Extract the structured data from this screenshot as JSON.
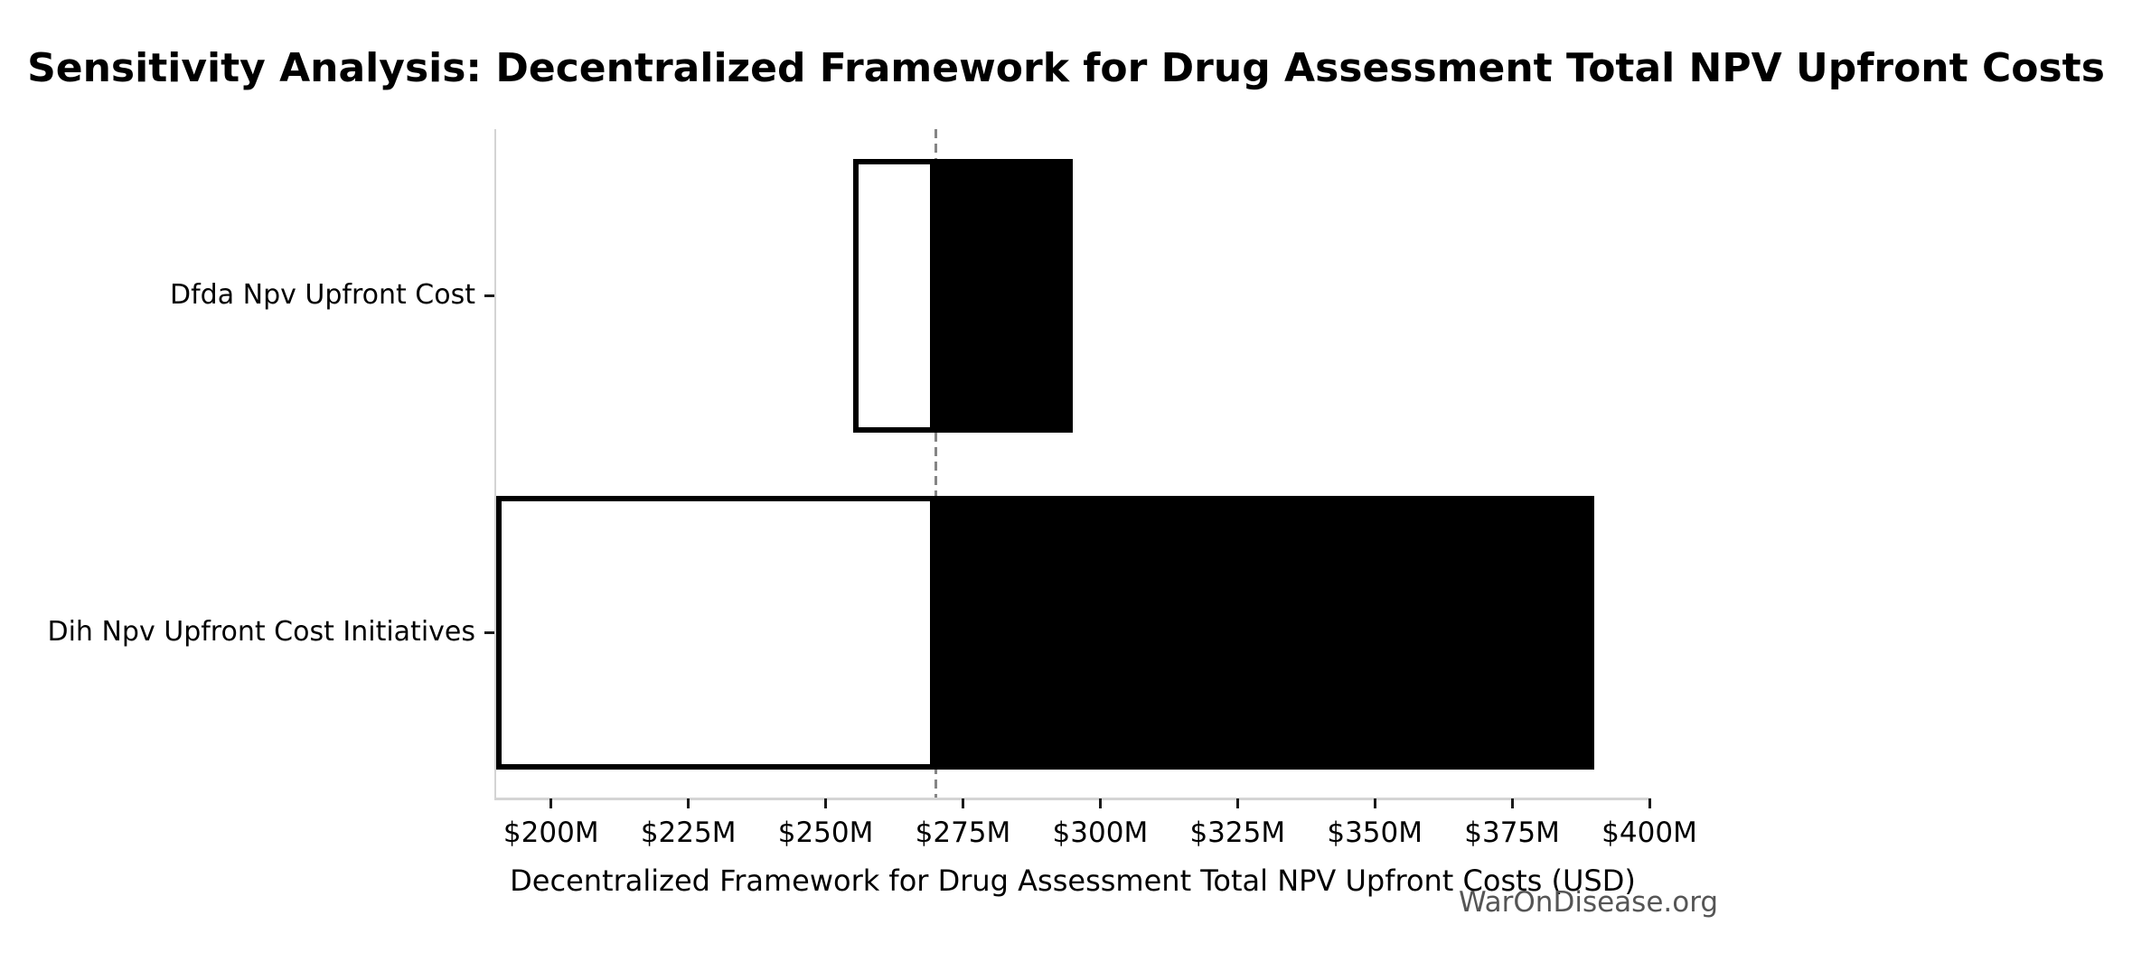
{
  "chart_data": {
    "type": "bar",
    "subtype": "tornado-sensitivity",
    "orientation": "horizontal",
    "title": "Sensitivity Analysis: Decentralized Framework for Drug Assessment Total NPV Upfront Costs",
    "xlabel": "Decentralized Framework for Drug Assessment Total NPV Upfront Costs (USD)",
    "watermark": "WarOnDisease.org",
    "unit": "USD millions",
    "xlim": [
      190,
      400
    ],
    "baseline_value": 270,
    "grid": false,
    "legend": "none",
    "x_ticks": [
      {
        "value": 200,
        "label": "$200M"
      },
      {
        "value": 225,
        "label": "$225M"
      },
      {
        "value": 250,
        "label": "$250M"
      },
      {
        "value": 275,
        "label": "$275M"
      },
      {
        "value": 300,
        "label": "$300M"
      },
      {
        "value": 325,
        "label": "$325M"
      },
      {
        "value": 350,
        "label": "$350M"
      },
      {
        "value": 375,
        "label": "$375M"
      },
      {
        "value": 400,
        "label": "$400M"
      }
    ],
    "categories": [
      "Dfda Npv Upfront Cost",
      "Dih Npv Upfront Cost Initiatives"
    ],
    "series": [
      {
        "name": "Dfda Npv Upfront Cost",
        "low": 255,
        "high": 295
      },
      {
        "name": "Dih Npv Upfront Cost Initiatives",
        "low": 190,
        "high": 390
      }
    ],
    "colors": {
      "low_fill": "#ffffff",
      "high_fill": "#000000",
      "bar_edge": "#000000",
      "baseline_dash": "#858585",
      "spine": "#d4d4d4",
      "tick": "#1a1a1a",
      "text": "#000000",
      "watermark": "#555555"
    }
  }
}
